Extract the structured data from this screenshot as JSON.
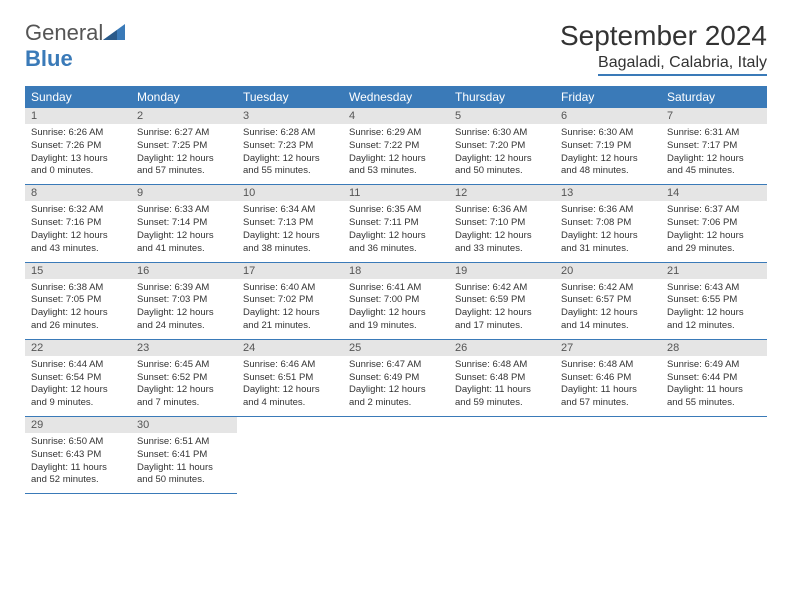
{
  "logo": {
    "text_general": "General",
    "text_blue": "Blue"
  },
  "title": "September 2024",
  "location": "Bagaladi, Calabria, Italy",
  "colors": {
    "accent": "#3a7ab8",
    "header_bg": "#3a7ab8",
    "daynum_bg": "#e5e5e5"
  },
  "day_headers": [
    "Sunday",
    "Monday",
    "Tuesday",
    "Wednesday",
    "Thursday",
    "Friday",
    "Saturday"
  ],
  "weeks": [
    [
      {
        "n": "1",
        "sr": "Sunrise: 6:26 AM",
        "ss": "Sunset: 7:26 PM",
        "dl": "Daylight: 13 hours and 0 minutes."
      },
      {
        "n": "2",
        "sr": "Sunrise: 6:27 AM",
        "ss": "Sunset: 7:25 PM",
        "dl": "Daylight: 12 hours and 57 minutes."
      },
      {
        "n": "3",
        "sr": "Sunrise: 6:28 AM",
        "ss": "Sunset: 7:23 PM",
        "dl": "Daylight: 12 hours and 55 minutes."
      },
      {
        "n": "4",
        "sr": "Sunrise: 6:29 AM",
        "ss": "Sunset: 7:22 PM",
        "dl": "Daylight: 12 hours and 53 minutes."
      },
      {
        "n": "5",
        "sr": "Sunrise: 6:30 AM",
        "ss": "Sunset: 7:20 PM",
        "dl": "Daylight: 12 hours and 50 minutes."
      },
      {
        "n": "6",
        "sr": "Sunrise: 6:30 AM",
        "ss": "Sunset: 7:19 PM",
        "dl": "Daylight: 12 hours and 48 minutes."
      },
      {
        "n": "7",
        "sr": "Sunrise: 6:31 AM",
        "ss": "Sunset: 7:17 PM",
        "dl": "Daylight: 12 hours and 45 minutes."
      }
    ],
    [
      {
        "n": "8",
        "sr": "Sunrise: 6:32 AM",
        "ss": "Sunset: 7:16 PM",
        "dl": "Daylight: 12 hours and 43 minutes."
      },
      {
        "n": "9",
        "sr": "Sunrise: 6:33 AM",
        "ss": "Sunset: 7:14 PM",
        "dl": "Daylight: 12 hours and 41 minutes."
      },
      {
        "n": "10",
        "sr": "Sunrise: 6:34 AM",
        "ss": "Sunset: 7:13 PM",
        "dl": "Daylight: 12 hours and 38 minutes."
      },
      {
        "n": "11",
        "sr": "Sunrise: 6:35 AM",
        "ss": "Sunset: 7:11 PM",
        "dl": "Daylight: 12 hours and 36 minutes."
      },
      {
        "n": "12",
        "sr": "Sunrise: 6:36 AM",
        "ss": "Sunset: 7:10 PM",
        "dl": "Daylight: 12 hours and 33 minutes."
      },
      {
        "n": "13",
        "sr": "Sunrise: 6:36 AM",
        "ss": "Sunset: 7:08 PM",
        "dl": "Daylight: 12 hours and 31 minutes."
      },
      {
        "n": "14",
        "sr": "Sunrise: 6:37 AM",
        "ss": "Sunset: 7:06 PM",
        "dl": "Daylight: 12 hours and 29 minutes."
      }
    ],
    [
      {
        "n": "15",
        "sr": "Sunrise: 6:38 AM",
        "ss": "Sunset: 7:05 PM",
        "dl": "Daylight: 12 hours and 26 minutes."
      },
      {
        "n": "16",
        "sr": "Sunrise: 6:39 AM",
        "ss": "Sunset: 7:03 PM",
        "dl": "Daylight: 12 hours and 24 minutes."
      },
      {
        "n": "17",
        "sr": "Sunrise: 6:40 AM",
        "ss": "Sunset: 7:02 PM",
        "dl": "Daylight: 12 hours and 21 minutes."
      },
      {
        "n": "18",
        "sr": "Sunrise: 6:41 AM",
        "ss": "Sunset: 7:00 PM",
        "dl": "Daylight: 12 hours and 19 minutes."
      },
      {
        "n": "19",
        "sr": "Sunrise: 6:42 AM",
        "ss": "Sunset: 6:59 PM",
        "dl": "Daylight: 12 hours and 17 minutes."
      },
      {
        "n": "20",
        "sr": "Sunrise: 6:42 AM",
        "ss": "Sunset: 6:57 PM",
        "dl": "Daylight: 12 hours and 14 minutes."
      },
      {
        "n": "21",
        "sr": "Sunrise: 6:43 AM",
        "ss": "Sunset: 6:55 PM",
        "dl": "Daylight: 12 hours and 12 minutes."
      }
    ],
    [
      {
        "n": "22",
        "sr": "Sunrise: 6:44 AM",
        "ss": "Sunset: 6:54 PM",
        "dl": "Daylight: 12 hours and 9 minutes."
      },
      {
        "n": "23",
        "sr": "Sunrise: 6:45 AM",
        "ss": "Sunset: 6:52 PM",
        "dl": "Daylight: 12 hours and 7 minutes."
      },
      {
        "n": "24",
        "sr": "Sunrise: 6:46 AM",
        "ss": "Sunset: 6:51 PM",
        "dl": "Daylight: 12 hours and 4 minutes."
      },
      {
        "n": "25",
        "sr": "Sunrise: 6:47 AM",
        "ss": "Sunset: 6:49 PM",
        "dl": "Daylight: 12 hours and 2 minutes."
      },
      {
        "n": "26",
        "sr": "Sunrise: 6:48 AM",
        "ss": "Sunset: 6:48 PM",
        "dl": "Daylight: 11 hours and 59 minutes."
      },
      {
        "n": "27",
        "sr": "Sunrise: 6:48 AM",
        "ss": "Sunset: 6:46 PM",
        "dl": "Daylight: 11 hours and 57 minutes."
      },
      {
        "n": "28",
        "sr": "Sunrise: 6:49 AM",
        "ss": "Sunset: 6:44 PM",
        "dl": "Daylight: 11 hours and 55 minutes."
      }
    ],
    [
      {
        "n": "29",
        "sr": "Sunrise: 6:50 AM",
        "ss": "Sunset: 6:43 PM",
        "dl": "Daylight: 11 hours and 52 minutes."
      },
      {
        "n": "30",
        "sr": "Sunrise: 6:51 AM",
        "ss": "Sunset: 6:41 PM",
        "dl": "Daylight: 11 hours and 50 minutes."
      },
      null,
      null,
      null,
      null,
      null
    ]
  ]
}
